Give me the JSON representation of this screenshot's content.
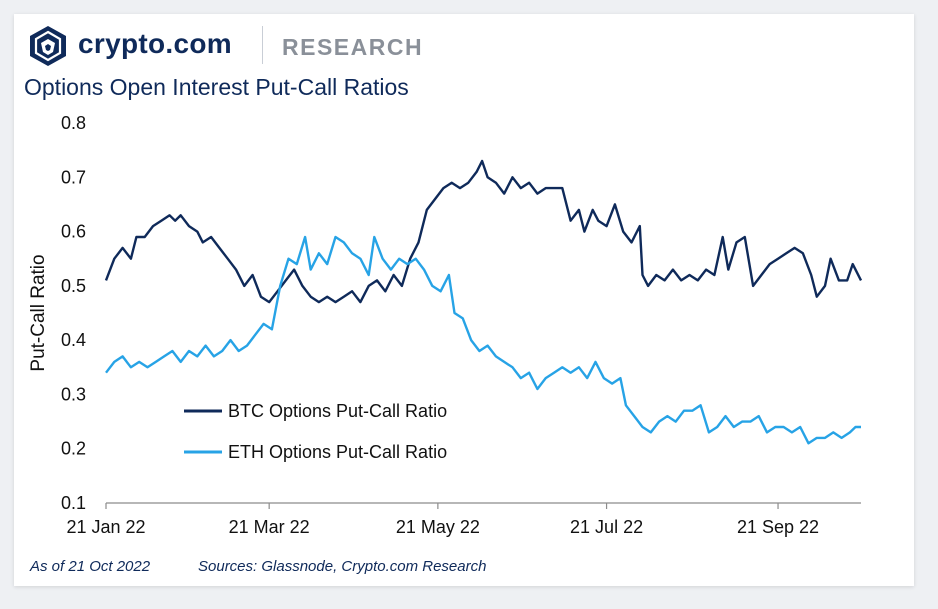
{
  "brand": {
    "name": "crypto.com",
    "section": "RESEARCH",
    "logo_icon": "crypto-com-lion-shield-icon",
    "colors": {
      "navy": "#0f2a5a",
      "grey": "#8a9099"
    }
  },
  "footer": {
    "date": "As of 21 Oct 2022",
    "sources": "Sources: Glassnode, Crypto.com Research"
  },
  "chart_data": {
    "type": "line",
    "title": "Options Open Interest Put-Call Ratios",
    "ylabel": "Put-Call Ratio",
    "xlabel": "",
    "ylim": [
      0.1,
      0.8
    ],
    "yticks": [
      "0.1",
      "0.2",
      "0.3",
      "0.4",
      "0.5",
      "0.6",
      "0.7",
      "0.8"
    ],
    "xlim": [
      "2022-01-21",
      "2022-10-21"
    ],
    "xticks": [
      {
        "label": "21 Jan 22",
        "date": "2022-01-21"
      },
      {
        "label": "21 Mar 22",
        "date": "2022-03-21"
      },
      {
        "label": "21 May 22",
        "date": "2022-05-21"
      },
      {
        "label": "21 Jul 22",
        "date": "2022-07-21"
      },
      {
        "label": "21 Sep 22",
        "date": "2022-09-21"
      }
    ],
    "grid": false,
    "legend_position": "bottom-left",
    "series": [
      {
        "name": "BTC Options Put-Call Ratio",
        "color": "#0f2a5a",
        "points": [
          [
            "2022-01-21",
            0.51
          ],
          [
            "2022-01-24",
            0.55
          ],
          [
            "2022-01-27",
            0.57
          ],
          [
            "2022-01-30",
            0.55
          ],
          [
            "2022-02-01",
            0.59
          ],
          [
            "2022-02-04",
            0.59
          ],
          [
            "2022-02-07",
            0.61
          ],
          [
            "2022-02-10",
            0.62
          ],
          [
            "2022-02-13",
            0.63
          ],
          [
            "2022-02-15",
            0.62
          ],
          [
            "2022-02-17",
            0.63
          ],
          [
            "2022-02-20",
            0.61
          ],
          [
            "2022-02-23",
            0.6
          ],
          [
            "2022-02-25",
            0.58
          ],
          [
            "2022-02-28",
            0.59
          ],
          [
            "2022-03-03",
            0.57
          ],
          [
            "2022-03-06",
            0.55
          ],
          [
            "2022-03-09",
            0.53
          ],
          [
            "2022-03-12",
            0.5
          ],
          [
            "2022-03-15",
            0.52
          ],
          [
            "2022-03-18",
            0.48
          ],
          [
            "2022-03-21",
            0.47
          ],
          [
            "2022-03-24",
            0.49
          ],
          [
            "2022-03-27",
            0.51
          ],
          [
            "2022-03-30",
            0.53
          ],
          [
            "2022-04-02",
            0.5
          ],
          [
            "2022-04-05",
            0.48
          ],
          [
            "2022-04-08",
            0.47
          ],
          [
            "2022-04-11",
            0.48
          ],
          [
            "2022-04-14",
            0.47
          ],
          [
            "2022-04-17",
            0.48
          ],
          [
            "2022-04-20",
            0.49
          ],
          [
            "2022-04-23",
            0.47
          ],
          [
            "2022-04-26",
            0.5
          ],
          [
            "2022-04-29",
            0.51
          ],
          [
            "2022-05-02",
            0.49
          ],
          [
            "2022-05-05",
            0.52
          ],
          [
            "2022-05-08",
            0.5
          ],
          [
            "2022-05-11",
            0.55
          ],
          [
            "2022-05-14",
            0.58
          ],
          [
            "2022-05-17",
            0.64
          ],
          [
            "2022-05-20",
            0.66
          ],
          [
            "2022-05-23",
            0.68
          ],
          [
            "2022-05-26",
            0.69
          ],
          [
            "2022-05-29",
            0.68
          ],
          [
            "2022-06-01",
            0.69
          ],
          [
            "2022-06-04",
            0.71
          ],
          [
            "2022-06-06",
            0.73
          ],
          [
            "2022-06-08",
            0.7
          ],
          [
            "2022-06-11",
            0.69
          ],
          [
            "2022-06-14",
            0.67
          ],
          [
            "2022-06-17",
            0.7
          ],
          [
            "2022-06-20",
            0.68
          ],
          [
            "2022-06-23",
            0.69
          ],
          [
            "2022-06-26",
            0.67
          ],
          [
            "2022-06-29",
            0.68
          ],
          [
            "2022-07-02",
            0.68
          ],
          [
            "2022-07-05",
            0.68
          ],
          [
            "2022-07-08",
            0.62
          ],
          [
            "2022-07-11",
            0.64
          ],
          [
            "2022-07-13",
            0.6
          ],
          [
            "2022-07-16",
            0.64
          ],
          [
            "2022-07-18",
            0.62
          ],
          [
            "2022-07-21",
            0.61
          ],
          [
            "2022-07-24",
            0.65
          ],
          [
            "2022-07-27",
            0.6
          ],
          [
            "2022-07-30",
            0.58
          ],
          [
            "2022-08-02",
            0.61
          ],
          [
            "2022-08-03",
            0.52
          ],
          [
            "2022-08-05",
            0.5
          ],
          [
            "2022-08-08",
            0.52
          ],
          [
            "2022-08-11",
            0.51
          ],
          [
            "2022-08-14",
            0.53
          ],
          [
            "2022-08-17",
            0.51
          ],
          [
            "2022-08-20",
            0.52
          ],
          [
            "2022-08-23",
            0.51
          ],
          [
            "2022-08-26",
            0.53
          ],
          [
            "2022-08-29",
            0.52
          ],
          [
            "2022-09-01",
            0.59
          ],
          [
            "2022-09-03",
            0.53
          ],
          [
            "2022-09-06",
            0.58
          ],
          [
            "2022-09-09",
            0.59
          ],
          [
            "2022-09-12",
            0.5
          ],
          [
            "2022-09-15",
            0.52
          ],
          [
            "2022-09-18",
            0.54
          ],
          [
            "2022-09-21",
            0.55
          ],
          [
            "2022-09-24",
            0.56
          ],
          [
            "2022-09-27",
            0.57
          ],
          [
            "2022-09-30",
            0.56
          ],
          [
            "2022-10-03",
            0.52
          ],
          [
            "2022-10-05",
            0.48
          ],
          [
            "2022-10-08",
            0.5
          ],
          [
            "2022-10-10",
            0.55
          ],
          [
            "2022-10-13",
            0.51
          ],
          [
            "2022-10-16",
            0.51
          ],
          [
            "2022-10-18",
            0.54
          ],
          [
            "2022-10-21",
            0.51
          ]
        ]
      },
      {
        "name": "ETH Options Put-Call Ratio",
        "color": "#27a3e6",
        "points": [
          [
            "2022-01-21",
            0.34
          ],
          [
            "2022-01-24",
            0.36
          ],
          [
            "2022-01-27",
            0.37
          ],
          [
            "2022-01-30",
            0.35
          ],
          [
            "2022-02-02",
            0.36
          ],
          [
            "2022-02-05",
            0.35
          ],
          [
            "2022-02-08",
            0.36
          ],
          [
            "2022-02-11",
            0.37
          ],
          [
            "2022-02-14",
            0.38
          ],
          [
            "2022-02-17",
            0.36
          ],
          [
            "2022-02-20",
            0.38
          ],
          [
            "2022-02-23",
            0.37
          ],
          [
            "2022-02-26",
            0.39
          ],
          [
            "2022-03-01",
            0.37
          ],
          [
            "2022-03-04",
            0.38
          ],
          [
            "2022-03-07",
            0.4
          ],
          [
            "2022-03-10",
            0.38
          ],
          [
            "2022-03-13",
            0.39
          ],
          [
            "2022-03-16",
            0.41
          ],
          [
            "2022-03-19",
            0.43
          ],
          [
            "2022-03-22",
            0.42
          ],
          [
            "2022-03-25",
            0.5
          ],
          [
            "2022-03-28",
            0.55
          ],
          [
            "2022-03-31",
            0.54
          ],
          [
            "2022-04-03",
            0.59
          ],
          [
            "2022-04-05",
            0.53
          ],
          [
            "2022-04-08",
            0.56
          ],
          [
            "2022-04-11",
            0.54
          ],
          [
            "2022-04-14",
            0.59
          ],
          [
            "2022-04-17",
            0.58
          ],
          [
            "2022-04-20",
            0.56
          ],
          [
            "2022-04-23",
            0.55
          ],
          [
            "2022-04-26",
            0.52
          ],
          [
            "2022-04-28",
            0.59
          ],
          [
            "2022-05-01",
            0.55
          ],
          [
            "2022-05-04",
            0.53
          ],
          [
            "2022-05-07",
            0.55
          ],
          [
            "2022-05-10",
            0.54
          ],
          [
            "2022-05-13",
            0.55
          ],
          [
            "2022-05-16",
            0.53
          ],
          [
            "2022-05-19",
            0.5
          ],
          [
            "2022-05-22",
            0.49
          ],
          [
            "2022-05-25",
            0.52
          ],
          [
            "2022-05-27",
            0.45
          ],
          [
            "2022-05-30",
            0.44
          ],
          [
            "2022-06-02",
            0.4
          ],
          [
            "2022-06-05",
            0.38
          ],
          [
            "2022-06-08",
            0.39
          ],
          [
            "2022-06-11",
            0.37
          ],
          [
            "2022-06-14",
            0.36
          ],
          [
            "2022-06-17",
            0.35
          ],
          [
            "2022-06-20",
            0.33
          ],
          [
            "2022-06-23",
            0.34
          ],
          [
            "2022-06-26",
            0.31
          ],
          [
            "2022-06-29",
            0.33
          ],
          [
            "2022-07-02",
            0.34
          ],
          [
            "2022-07-05",
            0.35
          ],
          [
            "2022-07-08",
            0.34
          ],
          [
            "2022-07-11",
            0.35
          ],
          [
            "2022-07-14",
            0.33
          ],
          [
            "2022-07-17",
            0.36
          ],
          [
            "2022-07-20",
            0.33
          ],
          [
            "2022-07-23",
            0.32
          ],
          [
            "2022-07-26",
            0.33
          ],
          [
            "2022-07-28",
            0.28
          ],
          [
            "2022-07-31",
            0.26
          ],
          [
            "2022-08-03",
            0.24
          ],
          [
            "2022-08-06",
            0.23
          ],
          [
            "2022-08-09",
            0.25
          ],
          [
            "2022-08-12",
            0.26
          ],
          [
            "2022-08-15",
            0.25
          ],
          [
            "2022-08-18",
            0.27
          ],
          [
            "2022-08-21",
            0.27
          ],
          [
            "2022-08-24",
            0.28
          ],
          [
            "2022-08-27",
            0.23
          ],
          [
            "2022-08-30",
            0.24
          ],
          [
            "2022-09-02",
            0.26
          ],
          [
            "2022-09-05",
            0.24
          ],
          [
            "2022-09-08",
            0.25
          ],
          [
            "2022-09-11",
            0.25
          ],
          [
            "2022-09-14",
            0.26
          ],
          [
            "2022-09-17",
            0.23
          ],
          [
            "2022-09-20",
            0.24
          ],
          [
            "2022-09-23",
            0.24
          ],
          [
            "2022-09-26",
            0.23
          ],
          [
            "2022-09-29",
            0.24
          ],
          [
            "2022-10-02",
            0.21
          ],
          [
            "2022-10-05",
            0.22
          ],
          [
            "2022-10-08",
            0.22
          ],
          [
            "2022-10-11",
            0.23
          ],
          [
            "2022-10-14",
            0.22
          ],
          [
            "2022-10-17",
            0.23
          ],
          [
            "2022-10-19",
            0.24
          ],
          [
            "2022-10-21",
            0.24
          ]
        ]
      }
    ]
  }
}
